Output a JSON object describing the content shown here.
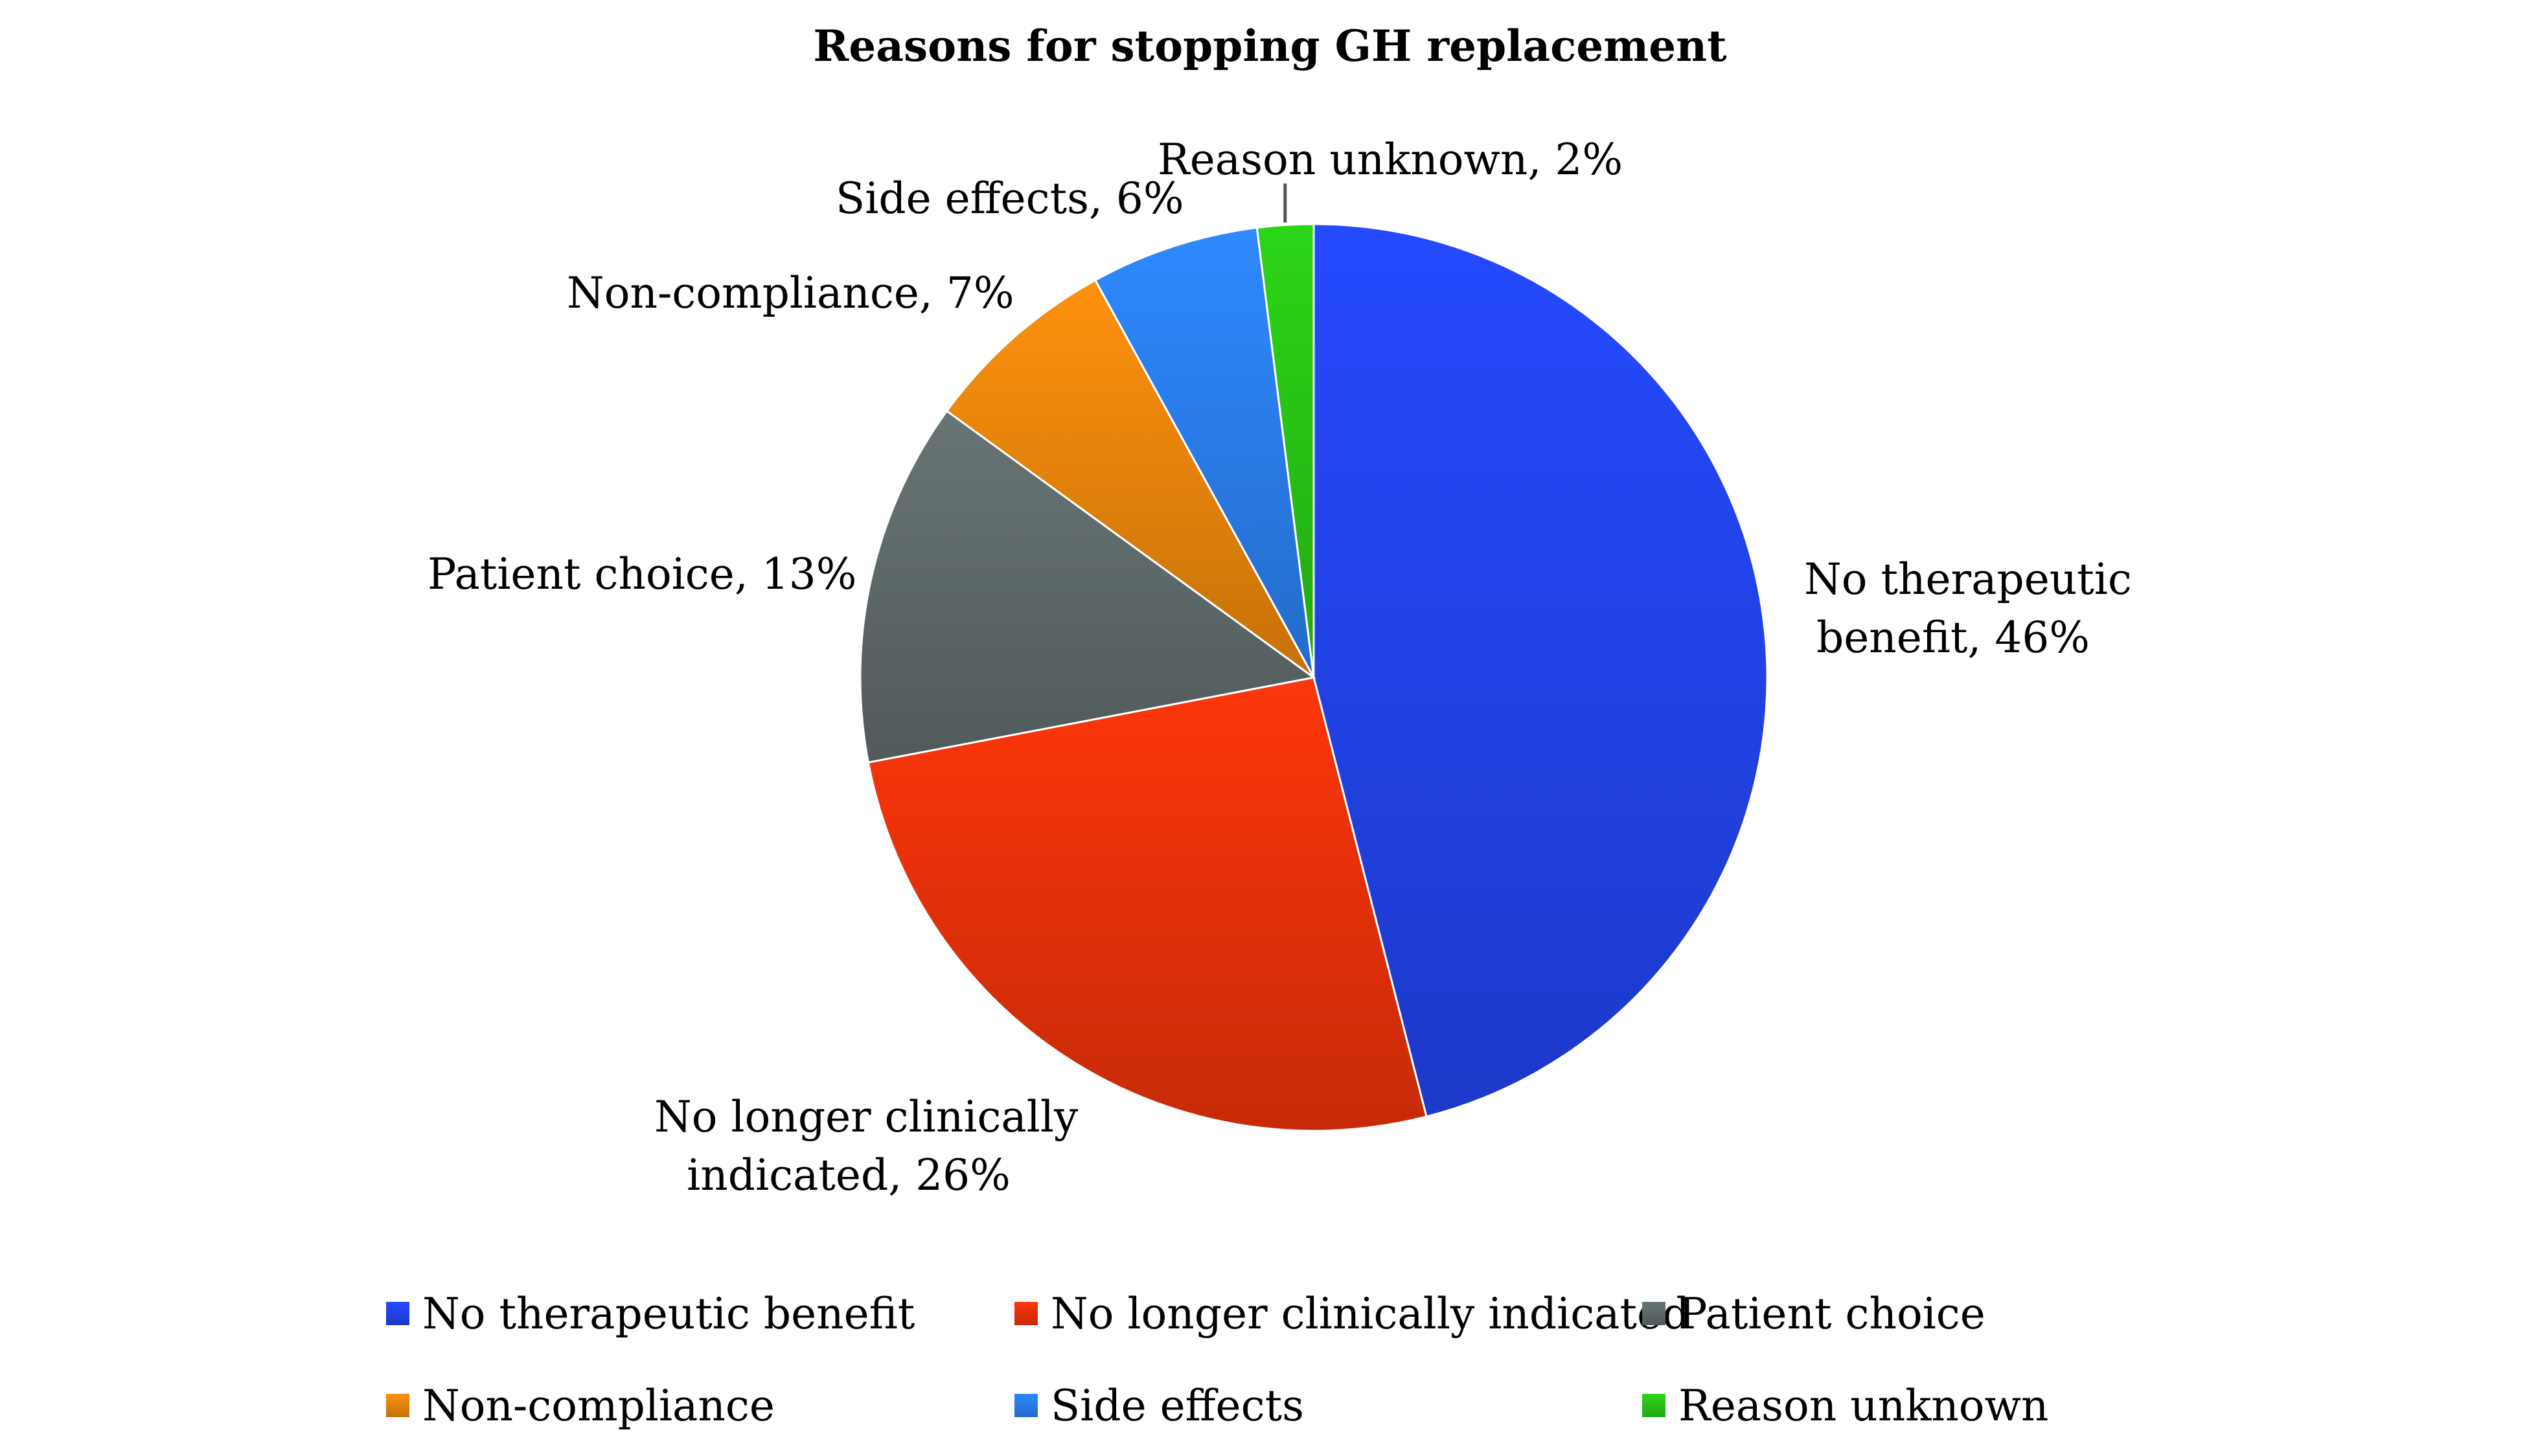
{
  "chart_data": {
    "type": "pie",
    "title": "Reasons for stopping GH replacement",
    "slices": [
      {
        "name": "No therapeutic benefit",
        "value": 46,
        "label_lines": [
          "No therapeutic",
          "benefit, 46%"
        ],
        "color": "#2346f5"
      },
      {
        "name": "No longer clinically indicated",
        "value": 26,
        "label_lines": [
          "No longer clinically",
          "indicated, 26%"
        ],
        "color": "#f2330a"
      },
      {
        "name": "Patient choice",
        "value": 13,
        "label_lines": [
          "Patient choice, 13%"
        ],
        "color": "#636e6e"
      },
      {
        "name": "Non-compliance",
        "value": 7,
        "label_lines": [
          "Non-compliance, 7%"
        ],
        "color": "#f28a0c"
      },
      {
        "name": "Side effects",
        "value": 6,
        "label_lines": [
          "Side effects, 6%"
        ],
        "color": "#2c82f5"
      },
      {
        "name": "Reason unknown",
        "value": 2,
        "label_lines": [
          "Reason unknown, 2%"
        ],
        "color": "#2acc16"
      }
    ],
    "legend": {
      "position": "bottom",
      "columns": 3
    },
    "start_angle": "12 o'clock",
    "direction": "clockwise"
  }
}
